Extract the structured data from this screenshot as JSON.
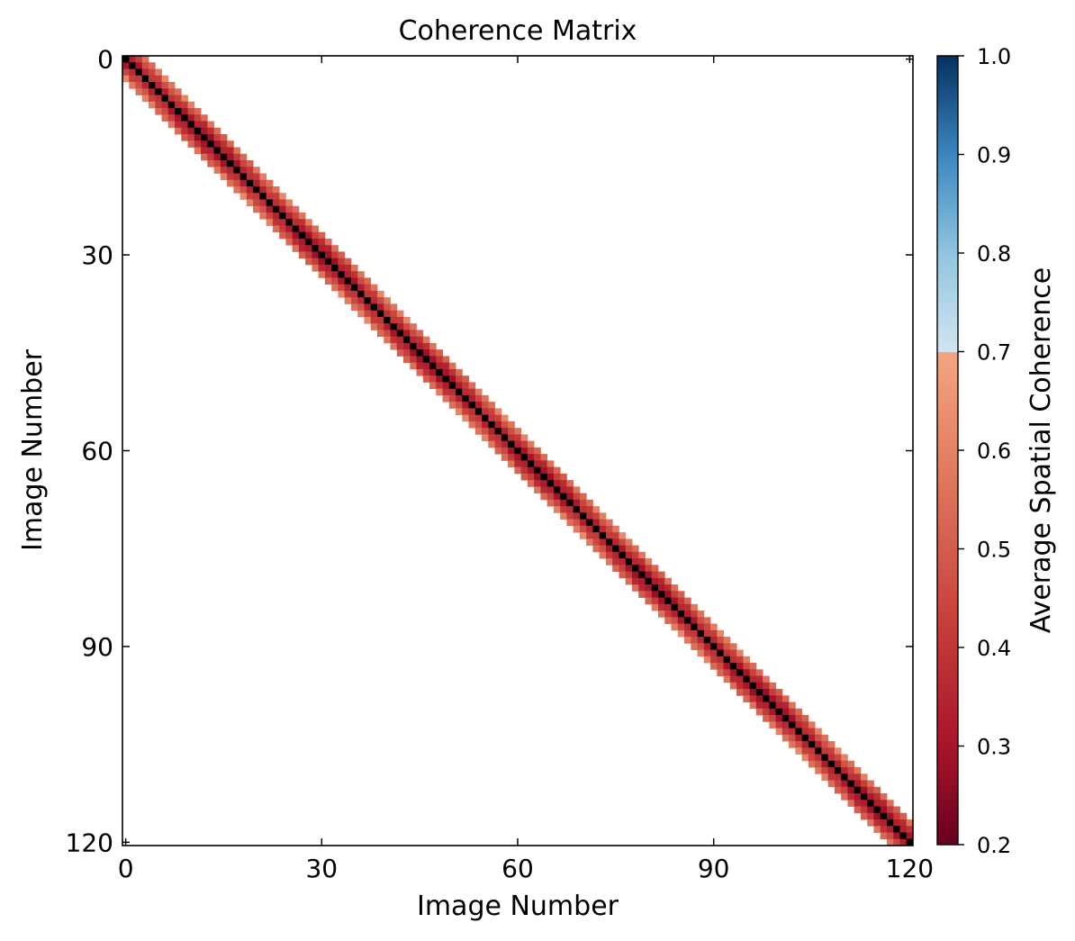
{
  "chart_data": {
    "type": "heatmap",
    "title": "Coherence Matrix",
    "xlabel": "Image Number",
    "ylabel": "Image Number",
    "n_images": 121,
    "xlim": [
      0,
      120
    ],
    "ylim": [
      0,
      120
    ],
    "y_inverted": true,
    "x_ticks": [
      0,
      30,
      60,
      90,
      120
    ],
    "y_ticks": [
      0,
      30,
      60,
      90,
      120
    ],
    "diagonal_value": 1.0,
    "band_values": [
      {
        "offset": 1,
        "value": 0.38
      },
      {
        "offset": 2,
        "value": 0.45
      },
      {
        "offset": 3,
        "value": 0.58
      }
    ],
    "off_band_value": null,
    "colorbar": {
      "label": "Average Spatial Coherence",
      "vmin": 0.2,
      "vmax": 1.0,
      "ticks": [
        "0.2",
        "0.3",
        "0.4",
        "0.5",
        "0.6",
        "0.7",
        "0.8",
        "0.9",
        "1.0"
      ],
      "colormap": "RdBu",
      "discontinuity_at": 0.7
    }
  }
}
